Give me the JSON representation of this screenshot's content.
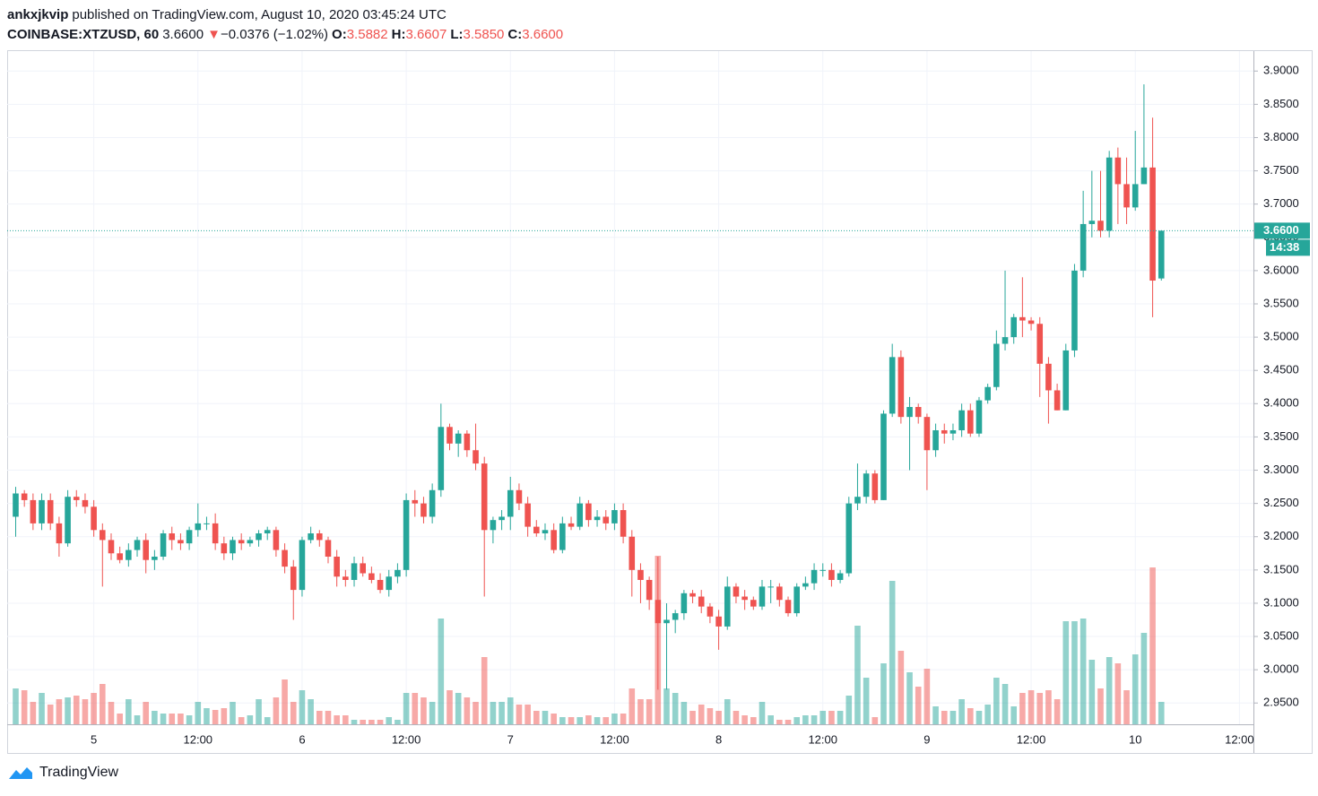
{
  "header": {
    "author": "ankxjkvip",
    "published": "published on TradingView.com, August 10, 2020 03:45:24 UTC",
    "symbol": "COINBASE:XTZUSD, 60",
    "price": "3.6600",
    "arrow": "▼",
    "change": "−0.0376 (−1.02%)",
    "o_label": "O:",
    "o": "3.5882",
    "h_label": "H:",
    "h": "3.6607",
    "l_label": "L:",
    "l": "3.5850",
    "c_label": "C:",
    "c": "3.6600"
  },
  "logo": "TradingView",
  "chart_data": {
    "type": "candlestick",
    "up_color": "#26a69a",
    "down_color": "#ef5350",
    "grid": true,
    "ylim": [
      2.918,
      3.93
    ],
    "yticks": [
      {
        "value": 2.95,
        "label": "2.9500"
      },
      {
        "value": 3.0,
        "label": "3.0000"
      },
      {
        "value": 3.05,
        "label": "3.0500"
      },
      {
        "value": 3.1,
        "label": "3.1000"
      },
      {
        "value": 3.15,
        "label": "3.1500"
      },
      {
        "value": 3.2,
        "label": "3.2000"
      },
      {
        "value": 3.25,
        "label": "3.2500"
      },
      {
        "value": 3.3,
        "label": "3.3000"
      },
      {
        "value": 3.35,
        "label": "3.3500"
      },
      {
        "value": 3.4,
        "label": "3.4000"
      },
      {
        "value": 3.45,
        "label": "3.4500"
      },
      {
        "value": 3.5,
        "label": "3.5000"
      },
      {
        "value": 3.55,
        "label": "3.5500"
      },
      {
        "value": 3.6,
        "label": "3.6000"
      },
      {
        "value": 3.65,
        "label": "3.6500"
      },
      {
        "value": 3.7,
        "label": "3.7000"
      },
      {
        "value": 3.75,
        "label": "3.7500"
      },
      {
        "value": 3.8,
        "label": "3.8000"
      },
      {
        "value": 3.85,
        "label": "3.8500"
      },
      {
        "value": 3.9,
        "label": "3.9000"
      }
    ],
    "last_price": {
      "value": 3.66,
      "label": "3.6600"
    },
    "countdown": "14:38",
    "volume_ylim": [
      0,
      751
    ],
    "categories": [
      null,
      null,
      null,
      null,
      null,
      null,
      null,
      null,
      null,
      "5",
      null,
      null,
      null,
      null,
      null,
      null,
      null,
      null,
      null,
      null,
      null,
      "12:00",
      null,
      null,
      null,
      null,
      null,
      null,
      null,
      null,
      null,
      null,
      null,
      "6",
      null,
      null,
      null,
      null,
      null,
      null,
      null,
      null,
      null,
      null,
      null,
      "12:00",
      null,
      null,
      null,
      null,
      null,
      null,
      null,
      null,
      null,
      null,
      null,
      "7",
      null,
      null,
      null,
      null,
      null,
      null,
      null,
      null,
      null,
      null,
      null,
      "12:00",
      null,
      null,
      null,
      null,
      null,
      null,
      null,
      null,
      null,
      null,
      null,
      "8",
      null,
      null,
      null,
      null,
      null,
      null,
      null,
      null,
      null,
      null,
      null,
      "12:00",
      null,
      null,
      null,
      null,
      null,
      null,
      null,
      null,
      null,
      null,
      null,
      "9",
      null,
      null,
      null,
      null,
      null,
      null,
      null,
      null,
      null,
      null,
      null,
      "12:00",
      null,
      null,
      null,
      null,
      null,
      null,
      null,
      null,
      null,
      null,
      null,
      "10",
      null,
      null,
      null,
      null,
      null,
      null,
      null,
      null,
      null,
      null,
      null,
      "12:00"
    ],
    "open": [
      3.23,
      3.265,
      3.255,
      3.22,
      3.255,
      3.22,
      3.19,
      3.26,
      3.255,
      3.245,
      3.21,
      3.195,
      3.175,
      3.165,
      3.18,
      3.195,
      3.165,
      3.17,
      3.205,
      3.195,
      3.19,
      3.21,
      3.22,
      3.22,
      3.19,
      3.175,
      3.195,
      3.19,
      3.195,
      3.205,
      3.21,
      3.18,
      3.155,
      3.12,
      3.195,
      3.205,
      3.195,
      3.17,
      3.14,
      3.135,
      3.16,
      3.145,
      3.135,
      3.12,
      3.14,
      3.15,
      3.255,
      3.25,
      3.23,
      3.27,
      3.365,
      3.34,
      3.355,
      3.33,
      3.31,
      3.21,
      3.225,
      3.23,
      3.27,
      3.25,
      3.215,
      3.205,
      3.21,
      3.18,
      3.22,
      3.215,
      3.25,
      3.225,
      3.23,
      3.22,
      3.24,
      3.2,
      3.15,
      3.135,
      3.105,
      3.07,
      3.075,
      3.085,
      3.115,
      3.11,
      3.095,
      3.08,
      3.065,
      3.125,
      3.11,
      3.105,
      3.095,
      3.125,
      3.125,
      3.105,
      3.085,
      3.125,
      3.13,
      3.15,
      3.15,
      3.135,
      3.145,
      3.25,
      3.26,
      3.295,
      3.255,
      3.385,
      3.47,
      3.38,
      3.395,
      3.38,
      3.33,
      3.36,
      3.355,
      3.36,
      3.39,
      3.355,
      3.405,
      3.425,
      3.49,
      3.5,
      3.53,
      3.525,
      3.52,
      3.46,
      3.42,
      3.39,
      3.48,
      3.6,
      3.67,
      3.675,
      3.66,
      3.77,
      3.73,
      3.695,
      3.73,
      3.755,
      3.5882,
      null,
      null,
      null,
      null,
      null,
      null,
      null,
      null,
      null
    ],
    "high": [
      3.275,
      3.27,
      3.265,
      3.265,
      3.265,
      3.23,
      3.27,
      3.27,
      3.265,
      3.255,
      3.22,
      3.205,
      3.185,
      3.19,
      3.2,
      3.205,
      3.18,
      3.21,
      3.215,
      3.205,
      3.215,
      3.25,
      3.23,
      3.235,
      3.2,
      3.2,
      3.205,
      3.2,
      3.21,
      3.215,
      3.215,
      3.19,
      3.165,
      3.2,
      3.215,
      3.21,
      3.2,
      3.18,
      3.15,
      3.17,
      3.17,
      3.155,
      3.145,
      3.15,
      3.16,
      3.265,
      3.27,
      3.26,
      3.28,
      3.4,
      3.37,
      3.36,
      3.36,
      3.37,
      3.32,
      3.23,
      3.24,
      3.29,
      3.28,
      3.26,
      3.225,
      3.22,
      3.22,
      3.23,
      3.23,
      3.26,
      3.255,
      3.24,
      3.24,
      3.25,
      3.25,
      3.21,
      3.16,
      3.14,
      3.17,
      3.1,
      3.09,
      3.12,
      3.12,
      3.12,
      3.1,
      3.09,
      3.14,
      3.13,
      3.12,
      3.11,
      3.135,
      3.135,
      3.13,
      3.11,
      3.13,
      3.14,
      3.16,
      3.16,
      3.16,
      3.15,
      3.26,
      3.31,
      3.3,
      3.3,
      3.39,
      3.49,
      3.48,
      3.41,
      3.4,
      3.385,
      3.37,
      3.37,
      3.37,
      3.4,
      3.4,
      3.41,
      3.43,
      3.51,
      3.6,
      3.535,
      3.59,
      3.53,
      3.53,
      3.47,
      3.43,
      3.49,
      3.61,
      3.72,
      3.75,
      3.75,
      3.78,
      3.785,
      3.77,
      3.81,
      3.88,
      3.83,
      3.6607,
      null,
      null,
      null,
      null,
      null,
      null,
      null,
      null,
      null
    ],
    "low": [
      3.2,
      3.245,
      3.21,
      3.21,
      3.21,
      3.17,
      3.185,
      3.245,
      3.235,
      3.2,
      3.125,
      3.165,
      3.16,
      3.155,
      3.17,
      3.145,
      3.15,
      3.165,
      3.18,
      3.18,
      3.18,
      3.2,
      3.21,
      3.18,
      3.165,
      3.165,
      3.18,
      3.185,
      3.185,
      3.195,
      3.17,
      3.145,
      3.075,
      3.11,
      3.19,
      3.185,
      3.16,
      3.125,
      3.125,
      3.125,
      3.14,
      3.13,
      3.115,
      3.11,
      3.13,
      3.14,
      3.23,
      3.22,
      3.22,
      3.26,
      3.33,
      3.32,
      3.32,
      3.3,
      3.11,
      3.19,
      3.21,
      3.21,
      3.24,
      3.2,
      3.2,
      3.195,
      3.175,
      3.175,
      3.21,
      3.21,
      3.215,
      3.215,
      3.21,
      3.21,
      3.19,
      3.11,
      3.1,
      3.09,
      2.97,
      2.97,
      3.055,
      3.075,
      3.1,
      3.085,
      3.07,
      3.03,
      3.06,
      3.1,
      3.09,
      3.09,
      3.09,
      3.1,
      3.095,
      3.08,
      3.08,
      3.12,
      3.12,
      3.14,
      3.125,
      3.13,
      3.14,
      3.24,
      3.25,
      3.25,
      3.255,
      3.38,
      3.37,
      3.3,
      3.37,
      3.27,
      3.32,
      3.34,
      3.345,
      3.35,
      3.35,
      3.35,
      3.4,
      3.42,
      3.48,
      3.49,
      3.5,
      3.51,
      3.41,
      3.37,
      3.39,
      3.39,
      3.47,
      3.59,
      3.65,
      3.65,
      3.65,
      3.67,
      3.67,
      3.69,
      3.73,
      3.53,
      3.585,
      null,
      null,
      null,
      null,
      null,
      null,
      null,
      null,
      null
    ],
    "close": [
      3.265,
      3.255,
      3.22,
      3.255,
      3.22,
      3.19,
      3.26,
      3.255,
      3.245,
      3.21,
      3.195,
      3.175,
      3.165,
      3.18,
      3.195,
      3.165,
      3.17,
      3.205,
      3.195,
      3.19,
      3.21,
      3.22,
      3.22,
      3.19,
      3.175,
      3.195,
      3.19,
      3.195,
      3.205,
      3.21,
      3.18,
      3.155,
      3.12,
      3.195,
      3.205,
      3.195,
      3.17,
      3.14,
      3.135,
      3.16,
      3.145,
      3.135,
      3.12,
      3.14,
      3.15,
      3.255,
      3.25,
      3.23,
      3.27,
      3.365,
      3.34,
      3.355,
      3.33,
      3.31,
      3.21,
      3.225,
      3.23,
      3.27,
      3.25,
      3.215,
      3.205,
      3.21,
      3.18,
      3.22,
      3.215,
      3.25,
      3.225,
      3.23,
      3.22,
      3.24,
      3.2,
      3.15,
      3.135,
      3.105,
      3.07,
      3.075,
      3.085,
      3.115,
      3.11,
      3.095,
      3.08,
      3.065,
      3.125,
      3.11,
      3.105,
      3.095,
      3.125,
      3.125,
      3.105,
      3.085,
      3.125,
      3.13,
      3.15,
      3.15,
      3.135,
      3.145,
      3.25,
      3.26,
      3.295,
      3.255,
      3.385,
      3.47,
      3.38,
      3.395,
      3.38,
      3.33,
      3.36,
      3.355,
      3.36,
      3.39,
      3.355,
      3.405,
      3.425,
      3.49,
      3.5,
      3.53,
      3.525,
      3.52,
      3.46,
      3.42,
      3.39,
      3.48,
      3.6,
      3.67,
      3.675,
      3.66,
      3.77,
      3.73,
      3.695,
      3.73,
      3.755,
      3.585,
      3.66,
      null,
      null,
      null,
      null,
      null,
      null,
      null,
      null,
      null
    ],
    "volume": [
      40,
      38,
      25,
      35,
      22,
      28,
      30,
      32,
      28,
      35,
      45,
      25,
      12,
      28,
      10,
      25,
      15,
      12,
      12,
      12,
      10,
      25,
      18,
      16,
      18,
      25,
      8,
      10,
      28,
      8,
      30,
      50,
      25,
      38,
      28,
      15,
      15,
      10,
      10,
      5,
      5,
      5,
      5,
      8,
      5,
      35,
      35,
      30,
      25,
      118,
      38,
      35,
      30,
      25,
      75,
      25,
      25,
      30,
      22,
      22,
      15,
      15,
      12,
      8,
      8,
      8,
      10,
      8,
      8,
      12,
      12,
      40,
      28,
      28,
      188,
      40,
      35,
      25,
      15,
      22,
      18,
      15,
      28,
      15,
      10,
      8,
      25,
      10,
      5,
      5,
      8,
      10,
      10,
      15,
      15,
      15,
      32,
      110,
      52,
      8,
      68,
      160,
      82,
      58,
      42,
      62,
      20,
      15,
      15,
      28,
      18,
      15,
      22,
      52,
      45,
      20,
      35,
      38,
      35,
      38,
      28,
      115,
      115,
      118,
      72,
      40,
      75,
      68,
      38,
      78,
      102,
      175,
      25,
      null,
      null,
      null,
      null,
      null,
      null,
      null,
      null,
      null
    ]
  }
}
